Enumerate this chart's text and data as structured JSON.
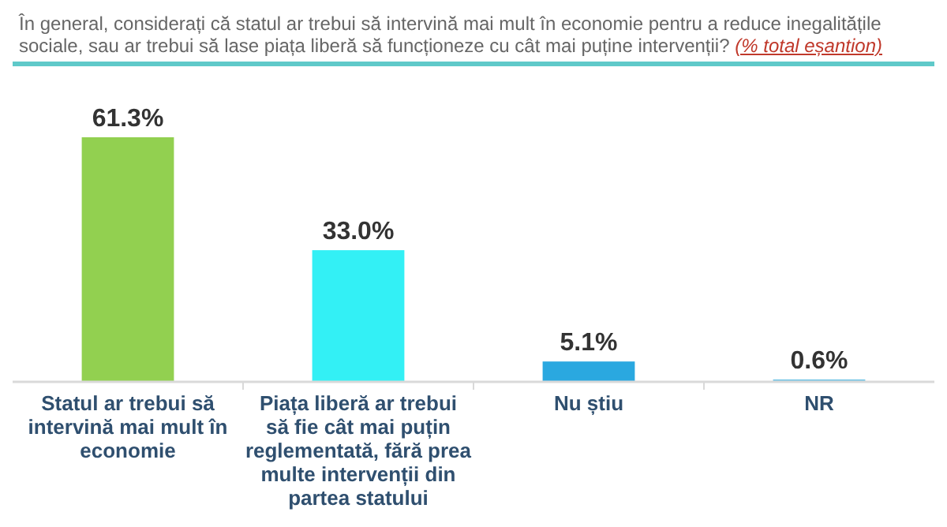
{
  "chart_data": {
    "type": "bar",
    "title": "În general, considerați că statul ar trebui să intervină mai mult în economie pentru a reduce inegalitățile sociale, sau ar trebui să lase piața liberă să funcționeze cu cât mai puține intervenții?",
    "subtitle": "(% total eșantion)",
    "categories": [
      "Statul ar trebui să intervină mai mult în economie",
      "Piața liberă ar trebui să fie cât mai puțin reglementată, fără prea multe intervenții din partea statului",
      "Nu știu",
      "NR"
    ],
    "values": [
      61.3,
      33.0,
      5.1,
      0.6
    ],
    "colors": [
      "#92d050",
      "#33f0f5",
      "#2aa8e0",
      "#70c4e6"
    ],
    "value_labels": [
      "61.3%",
      "33.0%",
      "5.1%",
      "0.6%"
    ]
  }
}
